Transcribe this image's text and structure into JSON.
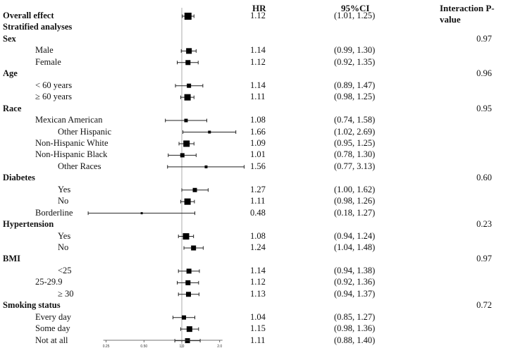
{
  "headers": {
    "hr": "HR",
    "ci": "95%CI",
    "p": "Interaction P-value"
  },
  "chart_data": {
    "type": "forest",
    "xscale": "log",
    "xticks": [
      "0.25",
      "0.50",
      "1.0",
      "2.0"
    ],
    "xtick_values": [
      0.25,
      0.5,
      1.0,
      2.0
    ],
    "reference_line": 1.0,
    "rows": [
      {
        "label": "Overall effect",
        "bold": true,
        "indent": 0,
        "hr": "1.12",
        "ci": "(1.01, 1.25)",
        "p": "",
        "est": 1.12,
        "lo": 1.01,
        "hi": 1.25,
        "size": 10
      },
      {
        "label": "Stratified analyses",
        "bold": true,
        "indent": 0,
        "hr": "",
        "ci": "",
        "p": ""
      },
      {
        "label": "Sex",
        "bold": true,
        "indent": 0,
        "hr": "",
        "ci": "",
        "p": "0.97"
      },
      {
        "label": "Male",
        "bold": false,
        "indent": 1,
        "hr": "1.14",
        "ci": "(0.99, 1.30)",
        "p": "",
        "est": 1.14,
        "lo": 0.99,
        "hi": 1.3,
        "size": 8
      },
      {
        "label": "Female",
        "bold": false,
        "indent": 1,
        "hr": "1.12",
        "ci": "(0.92, 1.35)",
        "p": "",
        "est": 1.12,
        "lo": 0.92,
        "hi": 1.35,
        "size": 7
      },
      {
        "label": "Age",
        "bold": true,
        "indent": 0,
        "hr": "",
        "ci": "",
        "p": "0.96"
      },
      {
        "label": "< 60 years",
        "bold": false,
        "indent": 1,
        "hr": "1.14",
        "ci": "(0.89, 1.47)",
        "p": "",
        "est": 1.14,
        "lo": 0.89,
        "hi": 1.47,
        "size": 6
      },
      {
        "label": "≥ 60 years",
        "bold": false,
        "indent": 1,
        "hr": "1.11",
        "ci": "(0.98, 1.25)",
        "p": "",
        "est": 1.11,
        "lo": 0.98,
        "hi": 1.25,
        "size": 9
      },
      {
        "label": "Race",
        "bold": true,
        "indent": 0,
        "hr": "",
        "ci": "",
        "p": "0.95"
      },
      {
        "label": "Mexican American",
        "bold": false,
        "indent": 1,
        "hr": "1.08",
        "ci": "(0.74, 1.58)",
        "p": "",
        "est": 1.08,
        "lo": 0.74,
        "hi": 1.58,
        "size": 5
      },
      {
        "label": "Other Hispanic",
        "bold": false,
        "indent": 2,
        "hr": "1.66",
        "ci": "(1.02, 2.69)",
        "p": "",
        "est": 1.66,
        "lo": 1.02,
        "hi": 2.69,
        "size": 4
      },
      {
        "label": "Non-Hispanic White",
        "bold": false,
        "indent": 1,
        "hr": "1.09",
        "ci": "(0.95, 1.25)",
        "p": "",
        "est": 1.09,
        "lo": 0.95,
        "hi": 1.25,
        "size": 9
      },
      {
        "label": "Non-Hispanic Black",
        "bold": false,
        "indent": 1,
        "hr": "1.01",
        "ci": "(0.78, 1.30)",
        "p": "",
        "est": 1.01,
        "lo": 0.78,
        "hi": 1.3,
        "size": 6
      },
      {
        "label": "Other Races",
        "bold": false,
        "indent": 2,
        "hr": "1.56",
        "ci": "(0.77, 3.13)",
        "p": "",
        "est": 1.56,
        "lo": 0.77,
        "hi": 3.13,
        "size": 4
      },
      {
        "label": "Diabetes",
        "bold": true,
        "indent": 0,
        "hr": "",
        "ci": "",
        "p": "0.60"
      },
      {
        "label": "Yes",
        "bold": false,
        "indent": 2,
        "hr": "1.27",
        "ci": "(1.00, 1.62)",
        "p": "",
        "est": 1.27,
        "lo": 1.0,
        "hi": 1.62,
        "size": 6
      },
      {
        "label": "No",
        "bold": false,
        "indent": 2,
        "hr": "1.11",
        "ci": "(0.98, 1.26)",
        "p": "",
        "est": 1.11,
        "lo": 0.98,
        "hi": 1.26,
        "size": 9
      },
      {
        "label": "Borderline",
        "bold": false,
        "indent": 1,
        "hr": "0.48",
        "ci": "(0.18, 1.27)",
        "p": "",
        "est": 0.48,
        "lo": 0.18,
        "hi": 1.27,
        "size": 3
      },
      {
        "label": "Hypertension",
        "bold": true,
        "indent": 0,
        "hr": "",
        "ci": "",
        "p": "0.23"
      },
      {
        "label": "Yes",
        "bold": false,
        "indent": 2,
        "hr": "1.08",
        "ci": "(0.94, 1.24)",
        "p": "",
        "est": 1.08,
        "lo": 0.94,
        "hi": 1.24,
        "size": 9
      },
      {
        "label": "No",
        "bold": false,
        "indent": 2,
        "hr": "1.24",
        "ci": "(1.04, 1.48)",
        "p": "",
        "est": 1.24,
        "lo": 1.04,
        "hi": 1.48,
        "size": 7
      },
      {
        "label": "BMI",
        "bold": true,
        "indent": 0,
        "hr": "",
        "ci": "",
        "p": "0.97"
      },
      {
        "label": "<25",
        "bold": false,
        "indent": 2,
        "hr": "1.14",
        "ci": "(0.94, 1.38)",
        "p": "",
        "est": 1.14,
        "lo": 0.94,
        "hi": 1.38,
        "size": 7
      },
      {
        "label": "25-29.9",
        "bold": false,
        "indent": 1,
        "hr": "1.12",
        "ci": "(0.92, 1.36)",
        "p": "",
        "est": 1.12,
        "lo": 0.92,
        "hi": 1.36,
        "size": 7
      },
      {
        "label": "≥ 30",
        "bold": false,
        "indent": 2,
        "hr": "1.13",
        "ci": "(0.94, 1.37)",
        "p": "",
        "est": 1.13,
        "lo": 0.94,
        "hi": 1.37,
        "size": 7
      },
      {
        "label": "Smoking status",
        "bold": true,
        "indent": 0,
        "hr": "",
        "ci": "",
        "p": "0.72"
      },
      {
        "label": "Every day",
        "bold": false,
        "indent": 1,
        "hr": "1.04",
        "ci": "(0.85, 1.27)",
        "p": "",
        "est": 1.04,
        "lo": 0.85,
        "hi": 1.27,
        "size": 6
      },
      {
        "label": "Some day",
        "bold": false,
        "indent": 1,
        "hr": "1.15",
        "ci": "(0.98, 1.36)",
        "p": "",
        "est": 1.15,
        "lo": 0.98,
        "hi": 1.36,
        "size": 8
      },
      {
        "label": "Not at all",
        "bold": false,
        "indent": 1,
        "hr": "1.11",
        "ci": "(0.88, 1.40)",
        "p": "",
        "est": 1.11,
        "lo": 0.88,
        "hi": 1.4,
        "size": 7
      }
    ]
  }
}
